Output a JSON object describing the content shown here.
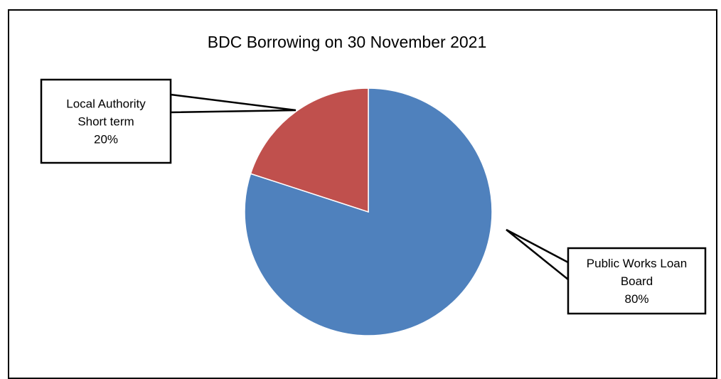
{
  "chart_data": {
    "type": "pie",
    "title": "BDC Borrowing on 30 November 2021",
    "slices": [
      {
        "name": "Public Works Loan Board",
        "label_lines": [
          "Public Works Loan",
          "Board"
        ],
        "value": 80,
        "value_label": "80%",
        "color": "#4F81BD"
      },
      {
        "name": "Local Authority Short term",
        "label_lines": [
          "Local Authority",
          "Short term"
        ],
        "value": 20,
        "value_label": "20%",
        "color": "#C0504D"
      }
    ],
    "start_angle": "12 o'clock",
    "direction": "clockwise",
    "legend": "none",
    "data_labels": "callouts"
  }
}
